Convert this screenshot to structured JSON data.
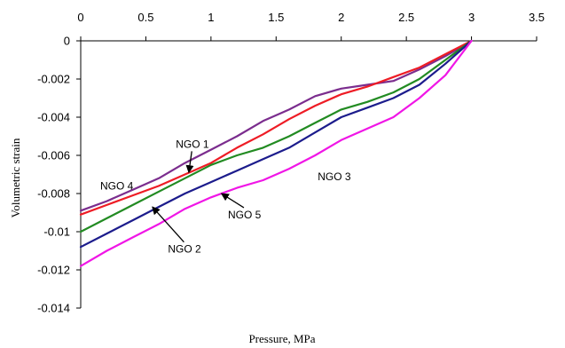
{
  "chart_data": {
    "type": "line",
    "xlabel": "Pressure, MPa",
    "ylabel": "Volumetric strain",
    "xlim": [
      0,
      3.5
    ],
    "ylim": [
      -0.014,
      0
    ],
    "x_ticks": [
      0,
      0.5,
      1,
      1.5,
      2,
      2.5,
      3,
      3.5
    ],
    "x_tick_labels": [
      "0",
      "0.5",
      "1",
      "1.5",
      "2",
      "2.5",
      "3",
      "3.5"
    ],
    "y_ticks": [
      0,
      -0.002,
      -0.004,
      -0.006,
      -0.008,
      -0.01,
      -0.012,
      -0.014
    ],
    "y_tick_labels": [
      "0",
      "-0.002",
      "-0.004",
      "-0.006",
      "-0.008",
      "-0.01",
      "-0.012",
      "-0.014"
    ],
    "x_axis_position": "top",
    "grid": false,
    "legend": "none",
    "series": [
      {
        "name": "NGO 4",
        "color": "#7b2d8e",
        "points": [
          [
            0,
            -0.0089
          ],
          [
            0.2,
            -0.0084
          ],
          [
            0.4,
            -0.0078
          ],
          [
            0.6,
            -0.0072
          ],
          [
            0.8,
            -0.0064
          ],
          [
            1.0,
            -0.0057
          ],
          [
            1.2,
            -0.005
          ],
          [
            1.4,
            -0.0042
          ],
          [
            1.6,
            -0.0036
          ],
          [
            1.8,
            -0.0029
          ],
          [
            2.0,
            -0.0025
          ],
          [
            2.2,
            -0.0023
          ],
          [
            2.4,
            -0.0021
          ],
          [
            2.6,
            -0.0015
          ],
          [
            2.8,
            -0.0008
          ],
          [
            3.0,
            0
          ]
        ]
      },
      {
        "name": "NGO 1",
        "color": "#ee1c25",
        "points": [
          [
            0,
            -0.0091
          ],
          [
            0.2,
            -0.0086
          ],
          [
            0.4,
            -0.0081
          ],
          [
            0.6,
            -0.0076
          ],
          [
            0.8,
            -0.007
          ],
          [
            1.0,
            -0.0064
          ],
          [
            1.2,
            -0.0056
          ],
          [
            1.4,
            -0.0049
          ],
          [
            1.6,
            -0.0041
          ],
          [
            1.8,
            -0.0034
          ],
          [
            2.0,
            -0.0028
          ],
          [
            2.2,
            -0.0024
          ],
          [
            2.4,
            -0.0019
          ],
          [
            2.6,
            -0.0014
          ],
          [
            2.8,
            -0.0007
          ],
          [
            3.0,
            0
          ]
        ]
      },
      {
        "name": "NGO 3",
        "color": "#228b22",
        "points": [
          [
            0,
            -0.01
          ],
          [
            0.2,
            -0.0093
          ],
          [
            0.4,
            -0.0086
          ],
          [
            0.6,
            -0.0079
          ],
          [
            0.8,
            -0.0072
          ],
          [
            1.0,
            -0.0065
          ],
          [
            1.2,
            -0.006
          ],
          [
            1.4,
            -0.0056
          ],
          [
            1.6,
            -0.005
          ],
          [
            1.8,
            -0.0043
          ],
          [
            2.0,
            -0.0036
          ],
          [
            2.2,
            -0.0032
          ],
          [
            2.4,
            -0.0027
          ],
          [
            2.6,
            -0.002
          ],
          [
            2.8,
            -0.001
          ],
          [
            3.0,
            0
          ]
        ]
      },
      {
        "name": "NGO 2",
        "color": "#1c1c8c",
        "points": [
          [
            0,
            -0.0108
          ],
          [
            0.2,
            -0.0101
          ],
          [
            0.4,
            -0.0094
          ],
          [
            0.6,
            -0.0087
          ],
          [
            0.8,
            -0.008
          ],
          [
            1.0,
            -0.0074
          ],
          [
            1.2,
            -0.0068
          ],
          [
            1.4,
            -0.0062
          ],
          [
            1.6,
            -0.0056
          ],
          [
            1.8,
            -0.0048
          ],
          [
            2.0,
            -0.004
          ],
          [
            2.2,
            -0.0035
          ],
          [
            2.4,
            -0.003
          ],
          [
            2.6,
            -0.0023
          ],
          [
            2.8,
            -0.0012
          ],
          [
            3.0,
            0
          ]
        ]
      },
      {
        "name": "NGO 5",
        "color": "#f016e6",
        "points": [
          [
            0,
            -0.0118
          ],
          [
            0.2,
            -0.011
          ],
          [
            0.4,
            -0.0103
          ],
          [
            0.6,
            -0.0096
          ],
          [
            0.8,
            -0.0088
          ],
          [
            1.0,
            -0.0082
          ],
          [
            1.2,
            -0.0077
          ],
          [
            1.4,
            -0.0073
          ],
          [
            1.6,
            -0.0067
          ],
          [
            1.8,
            -0.006
          ],
          [
            2.0,
            -0.0052
          ],
          [
            2.2,
            -0.0046
          ],
          [
            2.4,
            -0.004
          ],
          [
            2.6,
            -0.003
          ],
          [
            2.8,
            -0.0018
          ],
          [
            3.0,
            0
          ]
        ]
      }
    ],
    "annotations": [
      {
        "text": "NGO 4",
        "x": 0.15,
        "y": -0.0078,
        "arrow_to": null
      },
      {
        "text": "NGO 1",
        "x": 0.73,
        "y": -0.0056,
        "arrow_to": [
          0.83,
          -0.0069
        ]
      },
      {
        "text": "NGO 3",
        "x": 1.82,
        "y": -0.0073,
        "arrow_to": null
      },
      {
        "text": "NGO 5",
        "x": 1.13,
        "y": -0.0093,
        "arrow_to": [
          1.08,
          -0.008
        ]
      },
      {
        "text": "NGO 2",
        "x": 0.67,
        "y": -0.0111,
        "arrow_to": [
          0.55,
          -0.0087
        ]
      }
    ]
  }
}
